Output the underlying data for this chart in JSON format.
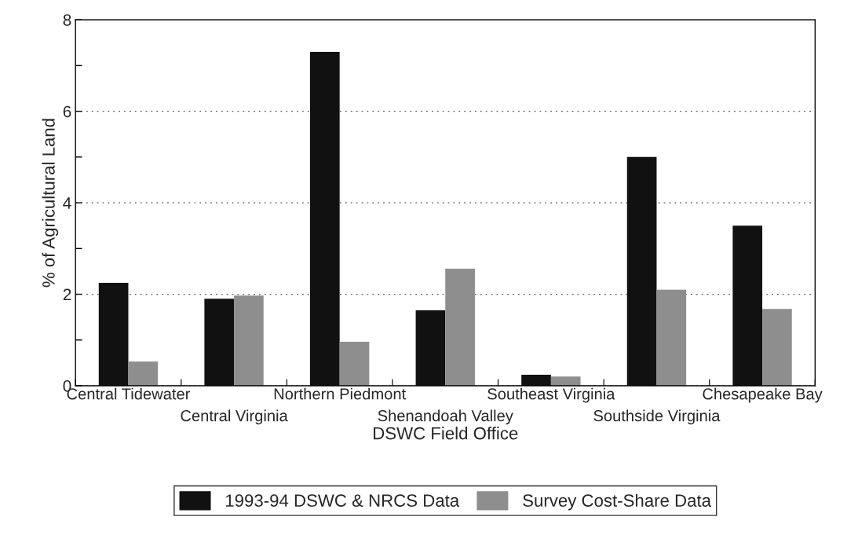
{
  "chart_data": {
    "type": "bar",
    "xlabel": "DSWC Field Office",
    "ylabel": "% of Agricultural Land",
    "categories": [
      "Central Tidewater",
      "Central Virginia",
      "Northern Piedmont",
      "Shenandoah Valley",
      "Southeast Virginia",
      "Southside Virginia",
      "Chesapeake Bay"
    ],
    "series": [
      {
        "name": "1993-94 DSWC & NRCS Data",
        "color": "#111111",
        "values": [
          2.25,
          1.9,
          7.3,
          1.65,
          0.24,
          5.0,
          3.5
        ]
      },
      {
        "name": "Survey Cost-Share Data",
        "color": "#8e8e8e",
        "values": [
          0.53,
          1.97,
          0.96,
          2.56,
          0.2,
          2.1,
          1.68
        ]
      }
    ],
    "ylim": [
      0,
      8
    ],
    "yticks": [
      0,
      {
        "value": 1,
        "label": null
      },
      2,
      {
        "value": 3,
        "label": null
      },
      4,
      {
        "value": 5,
        "label": null
      },
      6,
      {
        "value": 7,
        "label": null
      },
      8
    ],
    "grid": "y",
    "legend": "bottom"
  }
}
